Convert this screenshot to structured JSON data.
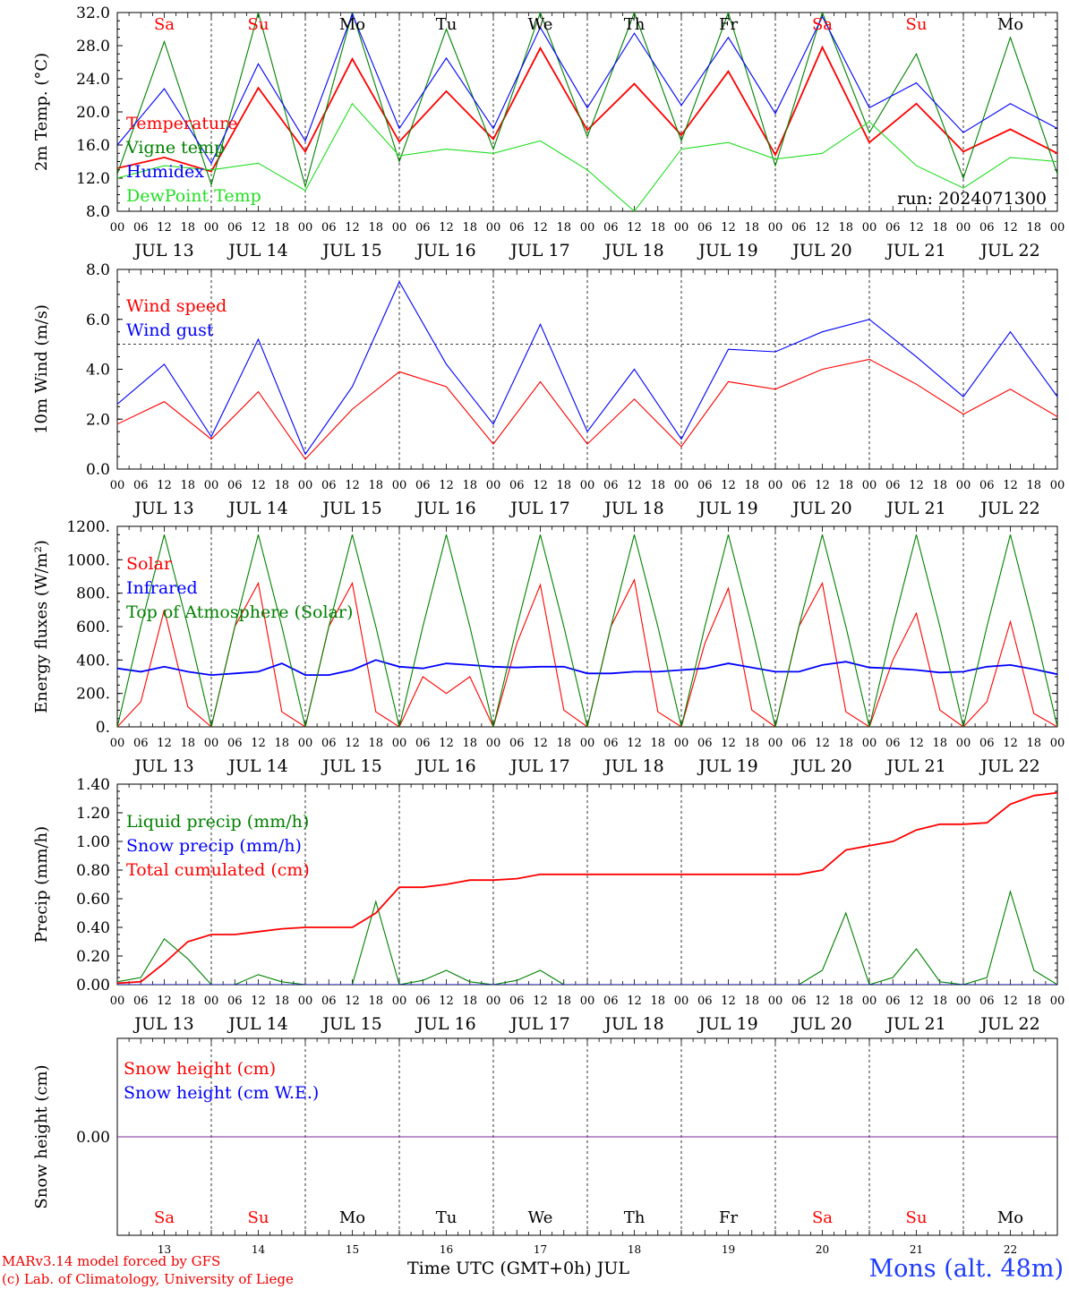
{
  "chart_data": [
    {
      "type": "line",
      "ylabel": "2m Temp. (°C)",
      "ylim": [
        8,
        32
      ],
      "yticks": [
        "8.0",
        "12.0",
        "16.0",
        "20.0",
        "24.0",
        "28.0",
        "32.0"
      ],
      "run_label": "run: 2024071300",
      "x_hours": [
        0,
        12,
        24,
        36,
        48,
        60,
        72,
        84,
        96,
        108,
        120,
        132,
        144,
        156,
        168,
        180,
        192,
        204,
        216,
        228,
        240
      ],
      "series": [
        {
          "name": "Temperature",
          "color": "#ff0000",
          "values": [
            13.2,
            14.5,
            12.8,
            22.9,
            15.2,
            26.4,
            16.4,
            22.5,
            16.7,
            27.7,
            17.8,
            23.4,
            17.2,
            24.9,
            14.8,
            27.8,
            16.3,
            21.0,
            15.2,
            17.9,
            15.0
          ]
        },
        {
          "name": "Vigne temp",
          "color": "#008000",
          "values": [
            12.5,
            28.5,
            11.2,
            32.0,
            11.0,
            32.0,
            14.0,
            30.0,
            15.5,
            32.0,
            17.0,
            32.0,
            16.5,
            32.0,
            13.5,
            32.0,
            17.5,
            27.0,
            12.0,
            29.0,
            12.5
          ]
        },
        {
          "name": "Humidex",
          "color": "#0000ff",
          "values": [
            16.0,
            22.8,
            13.8,
            25.8,
            16.5,
            31.8,
            18.0,
            26.5,
            18.0,
            30.2,
            20.5,
            29.5,
            20.8,
            29.0,
            19.8,
            31.5,
            20.5,
            23.5,
            17.5,
            21.0,
            18.0
          ]
        },
        {
          "name": "DewPoint Temp",
          "color": "#22dd22",
          "values": [
            12.0,
            13.5,
            13.0,
            13.8,
            10.5,
            21.0,
            14.7,
            15.5,
            15.0,
            16.5,
            13.0,
            8.0,
            15.5,
            16.3,
            14.3,
            15.0,
            18.8,
            13.5,
            10.8,
            14.5,
            14.0
          ]
        }
      ]
    },
    {
      "type": "line",
      "ylabel": "10m Wind (m/s)",
      "ylim": [
        0,
        8
      ],
      "yticks": [
        "0.0",
        "2.0",
        "4.0",
        "6.0",
        "8.0"
      ],
      "reference_line": 5.0,
      "x_hours": [
        0,
        12,
        24,
        36,
        48,
        60,
        72,
        84,
        96,
        108,
        120,
        132,
        144,
        156,
        168,
        180,
        192,
        204,
        216,
        228,
        240
      ],
      "series": [
        {
          "name": "Wind speed",
          "color": "#ff0000",
          "values": [
            1.8,
            2.7,
            1.2,
            3.1,
            0.4,
            2.4,
            3.9,
            3.3,
            1.0,
            3.5,
            1.0,
            2.8,
            0.9,
            3.5,
            3.2,
            4.0,
            4.4,
            3.4,
            2.2,
            3.2,
            2.1
          ]
        },
        {
          "name": "Wind gust",
          "color": "#0000ff",
          "values": [
            2.6,
            4.2,
            1.3,
            5.2,
            0.6,
            3.3,
            7.5,
            4.2,
            1.8,
            5.8,
            1.5,
            4.0,
            1.2,
            4.8,
            4.7,
            5.5,
            6.0,
            4.5,
            2.9,
            5.5,
            2.9
          ]
        }
      ]
    },
    {
      "type": "line",
      "ylabel": "Energy fluxes (W/m²)",
      "ylim": [
        0,
        1200
      ],
      "yticks": [
        "0.",
        "200.",
        "400.",
        "600.",
        "800.",
        "1000.",
        "1200."
      ],
      "x_hours": [
        0,
        6,
        12,
        18,
        24,
        30,
        36,
        42,
        48,
        54,
        60,
        66,
        72,
        78,
        84,
        90,
        96,
        102,
        108,
        114,
        120,
        126,
        132,
        138,
        144,
        150,
        156,
        162,
        168,
        174,
        180,
        186,
        192,
        198,
        204,
        210,
        216,
        222,
        228,
        234,
        240
      ],
      "series": [
        {
          "name": "Solar",
          "color": "#ff0000",
          "values": [
            0,
            150,
            700,
            120,
            0,
            600,
            860,
            90,
            0,
            600,
            860,
            90,
            0,
            300,
            200,
            300,
            0,
            500,
            850,
            100,
            0,
            600,
            880,
            90,
            0,
            500,
            830,
            100,
            0,
            600,
            860,
            90,
            0,
            400,
            680,
            100,
            0,
            150,
            630,
            80,
            0
          ]
        },
        {
          "name": "Infrared",
          "color": "#0000ff",
          "values": [
            350,
            330,
            360,
            330,
            310,
            320,
            330,
            380,
            310,
            310,
            340,
            400,
            360,
            350,
            380,
            370,
            360,
            355,
            360,
            360,
            320,
            320,
            330,
            330,
            340,
            350,
            380,
            355,
            330,
            330,
            370,
            390,
            355,
            350,
            340,
            325,
            330,
            360,
            370,
            345,
            315
          ]
        },
        {
          "name": "Top of Atmosphere (Solar)",
          "color": "#008000",
          "values": [
            0,
            600,
            1150,
            600,
            0,
            600,
            1150,
            600,
            0,
            600,
            1150,
            600,
            0,
            600,
            1150,
            600,
            0,
            600,
            1150,
            600,
            0,
            600,
            1150,
            600,
            0,
            600,
            1150,
            600,
            0,
            600,
            1150,
            600,
            0,
            600,
            1150,
            600,
            0,
            600,
            1150,
            600,
            0
          ]
        }
      ]
    },
    {
      "type": "line",
      "ylabel": "Precip (mm/h)",
      "ylim": [
        0,
        1.4
      ],
      "yticks": [
        "0.00",
        "0.20",
        "0.40",
        "0.60",
        "0.80",
        "1.00",
        "1.20",
        "1.40"
      ],
      "x_hours": [
        0,
        6,
        12,
        18,
        24,
        30,
        36,
        42,
        48,
        54,
        60,
        66,
        72,
        78,
        84,
        90,
        96,
        102,
        108,
        114,
        120,
        126,
        132,
        138,
        144,
        150,
        156,
        162,
        168,
        174,
        180,
        186,
        192,
        198,
        204,
        210,
        216,
        222,
        228,
        234,
        240
      ],
      "series": [
        {
          "name": "Liquid precip (mm/h)",
          "color": "#008000",
          "values": [
            0.02,
            0.05,
            0.32,
            0.18,
            0,
            0,
            0.07,
            0.02,
            0,
            0,
            0,
            0.58,
            0,
            0.03,
            0.1,
            0.02,
            0,
            0.03,
            0.1,
            0,
            0,
            0,
            0,
            0,
            0,
            0,
            0,
            0,
            0,
            0,
            0.1,
            0.5,
            0,
            0.05,
            0.25,
            0.02,
            0,
            0.05,
            0.65,
            0.1,
            0
          ]
        },
        {
          "name": "Snow precip (mm/h)",
          "color": "#0000ff",
          "values": [
            0,
            0,
            0,
            0,
            0,
            0,
            0,
            0,
            0,
            0,
            0,
            0,
            0,
            0,
            0,
            0,
            0,
            0,
            0,
            0,
            0,
            0,
            0,
            0,
            0,
            0,
            0,
            0,
            0,
            0,
            0,
            0,
            0,
            0,
            0,
            0,
            0,
            0,
            0,
            0,
            0
          ]
        },
        {
          "name": "Total cumulated (cm)",
          "color": "#ff0000",
          "values": [
            0.01,
            0.02,
            0.15,
            0.3,
            0.35,
            0.35,
            0.37,
            0.39,
            0.4,
            0.4,
            0.4,
            0.5,
            0.68,
            0.68,
            0.7,
            0.73,
            0.73,
            0.74,
            0.77,
            0.77,
            0.77,
            0.77,
            0.77,
            0.77,
            0.77,
            0.77,
            0.77,
            0.77,
            0.77,
            0.77,
            0.8,
            0.94,
            0.97,
            1.0,
            1.08,
            1.12,
            1.12,
            1.13,
            1.26,
            1.32,
            1.34
          ]
        }
      ]
    },
    {
      "type": "line",
      "ylabel": "Snow height (cm)",
      "ylim": [
        -1,
        1
      ],
      "yticks": [
        "0.00"
      ],
      "x_hours": [
        0,
        240
      ],
      "series": [
        {
          "name": "Snow height (cm)",
          "color": "#ff0000",
          "values": [
            0,
            0
          ]
        },
        {
          "name": "Snow height (cm W.E.)",
          "color": "#0000ff",
          "values": [
            0,
            0
          ]
        }
      ]
    }
  ],
  "x_hour_ticks": [
    "00",
    "06",
    "12",
    "18"
  ],
  "x_day_labels": [
    "JUL 13",
    "JUL 14",
    "JUL 15",
    "JUL 16",
    "JUL 17",
    "JUL 18",
    "JUL 19",
    "JUL 20",
    "JUL 21",
    "JUL 22"
  ],
  "weekdays": [
    {
      "label": "Sa",
      "color": "#ff0000"
    },
    {
      "label": "Su",
      "color": "#ff0000"
    },
    {
      "label": "Mo",
      "color": "#000000"
    },
    {
      "label": "Tu",
      "color": "#000000"
    },
    {
      "label": "We",
      "color": "#000000"
    },
    {
      "label": "Th",
      "color": "#000000"
    },
    {
      "label": "Fr",
      "color": "#000000"
    },
    {
      "label": "Sa",
      "color": "#ff0000"
    },
    {
      "label": "Su",
      "color": "#ff0000"
    },
    {
      "label": "Mo",
      "color": "#000000"
    }
  ],
  "day_numbers": [
    "13",
    "14",
    "15",
    "16",
    "17",
    "18",
    "19",
    "20",
    "21",
    "22"
  ],
  "footer": {
    "model_line": "MARv3.14 model forced by GFS",
    "credit_line": "(c) Lab. of Climatology, University of Liege",
    "x_axis_label": "Time UTC (GMT+0h) JUL",
    "station": "Mons (alt. 48m)"
  }
}
